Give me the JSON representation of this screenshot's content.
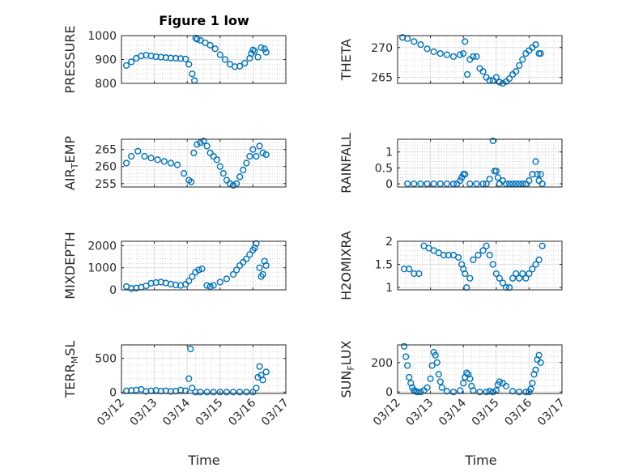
{
  "title": "Figure 1 low",
  "x_tick_labels": [
    "03/12",
    "03/13",
    "03/14",
    "03/15",
    "03/16",
    "03/17"
  ],
  "xlabel": "Time",
  "colors": {
    "marker": "#0072BD",
    "axis": "#262626",
    "grid": "#dfdfdf",
    "minor_grid": "#bdbdbd"
  },
  "chart_data": [
    {
      "type": "scatter",
      "ylabel": "PRESSURE",
      "ylim": [
        800,
        1000
      ],
      "yticks": [
        800,
        900,
        1000
      ],
      "x": [
        0.15,
        0.3,
        0.45,
        0.6,
        0.75,
        0.9,
        1.05,
        1.2,
        1.35,
        1.5,
        1.65,
        1.8,
        1.95,
        2.05,
        2.15,
        2.22,
        2.26,
        2.3,
        2.4,
        2.55,
        2.7,
        2.85,
        3.0,
        3.15,
        3.3,
        3.45,
        3.6,
        3.75,
        3.9,
        3.95,
        4.0,
        4.05,
        4.15,
        4.25,
        4.35,
        4.4
      ],
      "y": [
        875,
        890,
        905,
        915,
        918,
        915,
        912,
        910,
        908,
        906,
        905,
        904,
        902,
        880,
        840,
        812,
        990,
        985,
        980,
        970,
        960,
        945,
        920,
        900,
        880,
        870,
        872,
        885,
        905,
        925,
        940,
        935,
        910,
        950,
        945,
        930
      ]
    },
    {
      "type": "scatter",
      "ylabel": "THETA",
      "ylim": [
        264,
        272
      ],
      "yticks": [
        265,
        270
      ],
      "x": [
        0.15,
        0.3,
        0.5,
        0.7,
        0.9,
        1.1,
        1.3,
        1.5,
        1.7,
        1.9,
        2.0,
        2.05,
        2.12,
        2.2,
        2.3,
        2.4,
        2.5,
        2.6,
        2.7,
        2.8,
        2.9,
        3.0,
        3.1,
        3.2,
        3.3,
        3.4,
        3.5,
        3.6,
        3.7,
        3.8,
        3.9,
        4.0,
        4.1,
        4.2,
        4.3,
        4.35
      ],
      "y": [
        271.7,
        271.5,
        271,
        270.5,
        269.8,
        269.3,
        269,
        268.8,
        268.5,
        268.8,
        269,
        271,
        265.5,
        268,
        268.5,
        268.5,
        266.5,
        266,
        265,
        264.5,
        264.5,
        265,
        264.2,
        264,
        264.3,
        264.8,
        265.5,
        266,
        267,
        268,
        269,
        269.5,
        270,
        270.5,
        269,
        269
      ]
    },
    {
      "type": "scatter",
      "ylabel": "AIR_TEMP",
      "ylim": [
        254,
        268
      ],
      "yticks": [
        255,
        260,
        265
      ],
      "x": [
        0.15,
        0.3,
        0.5,
        0.7,
        0.9,
        1.1,
        1.3,
        1.5,
        1.7,
        1.9,
        2.05,
        2.12,
        2.2,
        2.3,
        2.4,
        2.5,
        2.6,
        2.7,
        2.8,
        2.9,
        3.0,
        3.1,
        3.2,
        3.3,
        3.4,
        3.5,
        3.6,
        3.7,
        3.8,
        3.9,
        4.0,
        4.1,
        4.2,
        4.3,
        4.4
      ],
      "y": [
        261,
        263,
        264.5,
        263,
        262.5,
        262,
        261.5,
        261,
        260.5,
        258,
        256,
        255.5,
        264,
        266.5,
        267,
        267.5,
        266,
        264,
        263,
        262,
        260,
        258,
        256,
        255,
        254.5,
        255,
        257,
        259,
        261,
        263,
        265,
        263,
        266,
        264,
        263.5
      ]
    },
    {
      "type": "scatter",
      "ylabel": "RAINFALL",
      "ylim": [
        -0.1,
        1.4
      ],
      "yticks": [
        0,
        0.5,
        1
      ],
      "x": [
        0.3,
        0.5,
        0.7,
        0.9,
        1.1,
        1.3,
        1.5,
        1.7,
        1.8,
        1.9,
        1.95,
        2.0,
        2.05,
        2.2,
        2.4,
        2.6,
        2.7,
        2.8,
        2.9,
        2.95,
        3.0,
        3.05,
        3.1,
        3.2,
        3.3,
        3.4,
        3.5,
        3.6,
        3.7,
        3.8,
        3.9,
        4.0,
        4.1,
        4.2,
        4.25,
        4.3,
        4.35,
        4.4
      ],
      "y": [
        0,
        0,
        0,
        0,
        0,
        0,
        0,
        0,
        0,
        0.1,
        0.2,
        0.3,
        0.3,
        0,
        0,
        0,
        0,
        0.15,
        1.35,
        0.4,
        0.4,
        0.2,
        0,
        0.1,
        0,
        0,
        0,
        0,
        0,
        0,
        0,
        0.1,
        0.3,
        0.7,
        0.3,
        0.1,
        0.3,
        0
      ]
    },
    {
      "type": "scatter",
      "ylabel": "MIXDEPTH",
      "ylim": [
        0,
        2200
      ],
      "yticks": [
        0,
        1000,
        2000
      ],
      "x": [
        0.15,
        0.3,
        0.45,
        0.6,
        0.75,
        0.9,
        1.05,
        1.2,
        1.35,
        1.5,
        1.65,
        1.8,
        1.95,
        2.05,
        2.15,
        2.25,
        2.35,
        2.45,
        2.6,
        2.7,
        2.8,
        3.0,
        3.2,
        3.4,
        3.5,
        3.6,
        3.7,
        3.8,
        3.9,
        4.0,
        4.05,
        4.1,
        4.2,
        4.25,
        4.3,
        4.35,
        4.4
      ],
      "y": [
        150,
        60,
        80,
        120,
        180,
        300,
        330,
        350,
        310,
        260,
        220,
        200,
        250,
        400,
        600,
        800,
        900,
        950,
        200,
        150,
        200,
        350,
        500,
        700,
        900,
        1100,
        1250,
        1400,
        1600,
        1800,
        1900,
        2100,
        1000,
        600,
        700,
        1300,
        1100
      ]
    },
    {
      "type": "scatter",
      "ylabel": "H2OMIXRA",
      "ylim": [
        0.95,
        2.0
      ],
      "yticks": [
        1,
        1.5,
        2
      ],
      "x": [
        0.2,
        0.35,
        0.5,
        0.65,
        0.8,
        0.95,
        1.1,
        1.25,
        1.4,
        1.55,
        1.7,
        1.85,
        1.95,
        2.0,
        2.05,
        2.1,
        2.2,
        2.3,
        2.45,
        2.6,
        2.7,
        2.8,
        2.9,
        3.0,
        3.1,
        3.2,
        3.3,
        3.4,
        3.5,
        3.6,
        3.7,
        3.8,
        3.9,
        4.0,
        4.1,
        4.2,
        4.3,
        4.4
      ],
      "y": [
        1.4,
        1.4,
        1.3,
        1.3,
        1.9,
        1.85,
        1.8,
        1.75,
        1.7,
        1.7,
        1.7,
        1.65,
        1.5,
        1.4,
        1.3,
        1.0,
        1.2,
        1.6,
        1.7,
        1.8,
        1.9,
        1.7,
        1.5,
        1.3,
        1.2,
        1.1,
        1.0,
        1.0,
        1.2,
        1.3,
        1.2,
        1.3,
        1.2,
        1.3,
        1.4,
        1.5,
        1.6,
        1.9
      ]
    },
    {
      "type": "scatter",
      "ylabel": "TERR_MSL",
      "ylim": [
        -20,
        700
      ],
      "yticks": [
        0,
        500
      ],
      "x": [
        0.15,
        0.3,
        0.45,
        0.6,
        0.75,
        0.9,
        1.05,
        1.2,
        1.35,
        1.5,
        1.65,
        1.8,
        1.95,
        2.05,
        2.1,
        2.15,
        2.25,
        2.4,
        2.6,
        2.8,
        3.0,
        3.2,
        3.4,
        3.6,
        3.8,
        4.0,
        4.1,
        4.15,
        4.2,
        4.25,
        4.3,
        4.4
      ],
      "y": [
        20,
        25,
        30,
        40,
        10,
        20,
        25,
        15,
        20,
        10,
        15,
        30,
        20,
        200,
        640,
        60,
        0,
        0,
        0,
        0,
        0,
        0,
        0,
        0,
        0,
        0,
        60,
        220,
        380,
        250,
        180,
        300
      ]
    },
    {
      "type": "scatter",
      "ylabel": "SUN_FLUX",
      "ylim": [
        -10,
        320
      ],
      "yticks": [
        0,
        200
      ],
      "x": [
        0.2,
        0.25,
        0.3,
        0.35,
        0.4,
        0.45,
        0.5,
        0.55,
        0.6,
        0.7,
        0.8,
        0.9,
        1.0,
        1.05,
        1.1,
        1.15,
        1.2,
        1.25,
        1.3,
        1.35,
        1.5,
        1.7,
        1.9,
        2.0,
        2.05,
        2.1,
        2.15,
        2.2,
        2.25,
        2.3,
        2.5,
        2.7,
        2.8,
        2.9,
        3.0,
        3.05,
        3.1,
        3.2,
        3.3,
        3.5,
        3.7,
        3.9,
        4.0,
        4.05,
        4.1,
        4.15,
        4.2,
        4.25,
        4.3,
        4.35
      ],
      "y": [
        310,
        240,
        180,
        100,
        60,
        30,
        10,
        5,
        0,
        0,
        10,
        30,
        90,
        180,
        270,
        250,
        200,
        120,
        70,
        30,
        5,
        0,
        10,
        60,
        100,
        130,
        120,
        90,
        40,
        10,
        0,
        0,
        5,
        0,
        10,
        50,
        70,
        60,
        40,
        5,
        0,
        0,
        0,
        20,
        60,
        120,
        150,
        220,
        250,
        200
      ]
    }
  ]
}
